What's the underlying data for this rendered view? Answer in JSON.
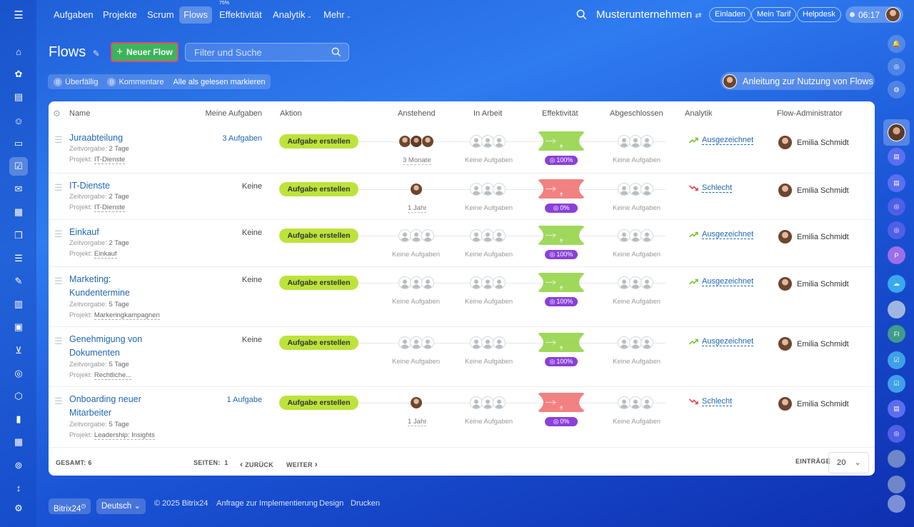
{
  "topbar": {
    "nav": [
      {
        "label": "Aufgaben",
        "chev": false,
        "active": false,
        "sup": ""
      },
      {
        "label": "Projekte",
        "chev": false,
        "active": false,
        "sup": ""
      },
      {
        "label": "Scrum",
        "chev": false,
        "active": false,
        "sup": ""
      },
      {
        "label": "Flows",
        "chev": false,
        "active": true,
        "sup": ""
      },
      {
        "label": "Effektivität",
        "chev": false,
        "active": false,
        "sup": "75%"
      },
      {
        "label": "Analytik",
        "chev": true,
        "active": false,
        "sup": ""
      },
      {
        "label": "Mehr",
        "chev": true,
        "active": false,
        "sup": ""
      }
    ],
    "company": "Musterunternehmen",
    "invite": "Einladen",
    "plan": "Mein Tarif",
    "helpdesk": "Helpdesk",
    "time": "06:17"
  },
  "header": {
    "title": "Flows",
    "new_flow": "Neuer Flow",
    "search_placeholder": "Filter und Suche",
    "overdue_count": "0",
    "overdue_label": "Überfällig",
    "comments_count": "0",
    "comments_label": "Kommentare",
    "mark_read": "Alle als gelesen markieren",
    "guide": "Anleitung zur Nutzung von Flows"
  },
  "columns": [
    "Name",
    "Meine Aufgaben",
    "Aktion",
    "Anstehend",
    "In Arbeit",
    "Effektivität",
    "Abgeschlossen",
    "Analytik",
    "Flow-Administrator"
  ],
  "rows": [
    {
      "name": "Juraabteilung",
      "time_label": "Zeitvorgabe:",
      "time": "2 Tage",
      "project_label": "Projekt:",
      "project": "IT-Dienste",
      "my_tasks": "3 Aufgaben",
      "my_tasks_link": true,
      "action": "Aufgabe erstellen",
      "pending_avatars": 3,
      "pending_caption": "3 Monate",
      "inwork_caption": "Keine Aufgaben",
      "eff": "100%",
      "eff_good": true,
      "done_caption": "Keine Aufgaben",
      "analytics": "Ausgezeichnet",
      "analytics_good": true,
      "admin": "Emilia Schmidt"
    },
    {
      "name": "IT-Dienste",
      "time_label": "Zeitvorgabe:",
      "time": "2 Tage",
      "project_label": "Projekt:",
      "project": "IT-Dienste",
      "my_tasks": "Keine",
      "my_tasks_link": false,
      "action": "Aufgabe erstellen",
      "pending_avatars": 1,
      "pending_caption": "1 Jahr",
      "inwork_caption": "Keine Aufgaben",
      "eff": "0%",
      "eff_good": false,
      "done_caption": "Keine Aufgaben",
      "analytics": "Schlecht",
      "analytics_good": false,
      "admin": "Emilia Schmidt"
    },
    {
      "name": "Einkauf",
      "time_label": "Zeitvorgabe:",
      "time": "2 Tage",
      "project_label": "Projekt:",
      "project": "Einkauf",
      "my_tasks": "Keine",
      "my_tasks_link": false,
      "action": "Aufgabe erstellen",
      "pending_avatars": 0,
      "pending_caption": "Keine Aufgaben",
      "inwork_caption": "Keine Aufgaben",
      "eff": "100%",
      "eff_good": true,
      "done_caption": "Keine Aufgaben",
      "analytics": "Ausgezeichnet",
      "analytics_good": true,
      "admin": "Emilia Schmidt"
    },
    {
      "name": "Marketing: Kundentermine",
      "time_label": "Zeitvorgabe:",
      "time": "5 Tage",
      "project_label": "Projekt:",
      "project": "Markeringkampagnen",
      "my_tasks": "Keine",
      "my_tasks_link": false,
      "action": "Aufgabe erstellen",
      "pending_avatars": 0,
      "pending_caption": "Keine Aufgaben",
      "inwork_caption": "Keine Aufgaben",
      "eff": "100%",
      "eff_good": true,
      "done_caption": "Keine Aufgaben",
      "analytics": "Ausgezeichnet",
      "analytics_good": true,
      "admin": "Emilia Schmidt"
    },
    {
      "name": "Genehmigung von Dokumenten",
      "time_label": "Zeitvorgabe:",
      "time": "5 Tage",
      "project_label": "Projekt:",
      "project": "Rechtliche...",
      "my_tasks": "Keine",
      "my_tasks_link": false,
      "action": "Aufgabe erstellen",
      "pending_avatars": 0,
      "pending_caption": "Keine Aufgaben",
      "inwork_caption": "Keine Aufgaben",
      "eff": "100%",
      "eff_good": true,
      "done_caption": "Keine Aufgaben",
      "analytics": "Ausgezeichnet",
      "analytics_good": true,
      "admin": "Emilia Schmidt"
    },
    {
      "name": "Onboarding neuer Mitarbeiter",
      "time_label": "Zeitvorgabe:",
      "time": "5 Tage",
      "project_label": "Projekt:",
      "project": "Leadership: Insights",
      "my_tasks": "1 Aufgabe",
      "my_tasks_link": true,
      "action": "Aufgabe erstellen",
      "pending_avatars": 1,
      "pending_caption": "1 Jahr",
      "inwork_caption": "Keine Aufgaben",
      "eff": "0%",
      "eff_good": false,
      "done_caption": "Keine Aufgaben",
      "analytics": "Schlecht",
      "analytics_good": false,
      "admin": "Emilia Schmidt"
    }
  ],
  "table_footer": {
    "total_label": "GESAMT:",
    "total": "6",
    "pages_label": "SEITEN:",
    "page": "1",
    "back": "ZURÜCK",
    "next": "WEITER",
    "entries_label": "EINTRÄGE",
    "entries": "20"
  },
  "footer": {
    "brand": "Bitrix24",
    "language": "Deutsch",
    "copyright": "© 2025 Bitrix24",
    "impl": "Anfrage zur Implementierung",
    "design": "Design",
    "print": "Drucken"
  },
  "colors": {
    "accent_green": "#3bb55b",
    "cta_lime": "#bde33b",
    "eff_purple": "#8b40d8",
    "good": "#8fd13f",
    "bad": "#f06b6b"
  },
  "icons": {
    "left": [
      "menu-icon",
      "home-icon",
      "feed-icon",
      "tasks-icon",
      "contacts-icon",
      "crm-icon",
      "checkbox-icon",
      "mail-icon",
      "calendar-icon",
      "chat-icon",
      "filter-icon",
      "sign-icon",
      "store-icon",
      "card-icon",
      "cart-icon",
      "target-icon",
      "box-icon",
      "chart-icon",
      "planner-icon",
      "bot-icon",
      "collapse-icon",
      "settings-icon"
    ]
  }
}
